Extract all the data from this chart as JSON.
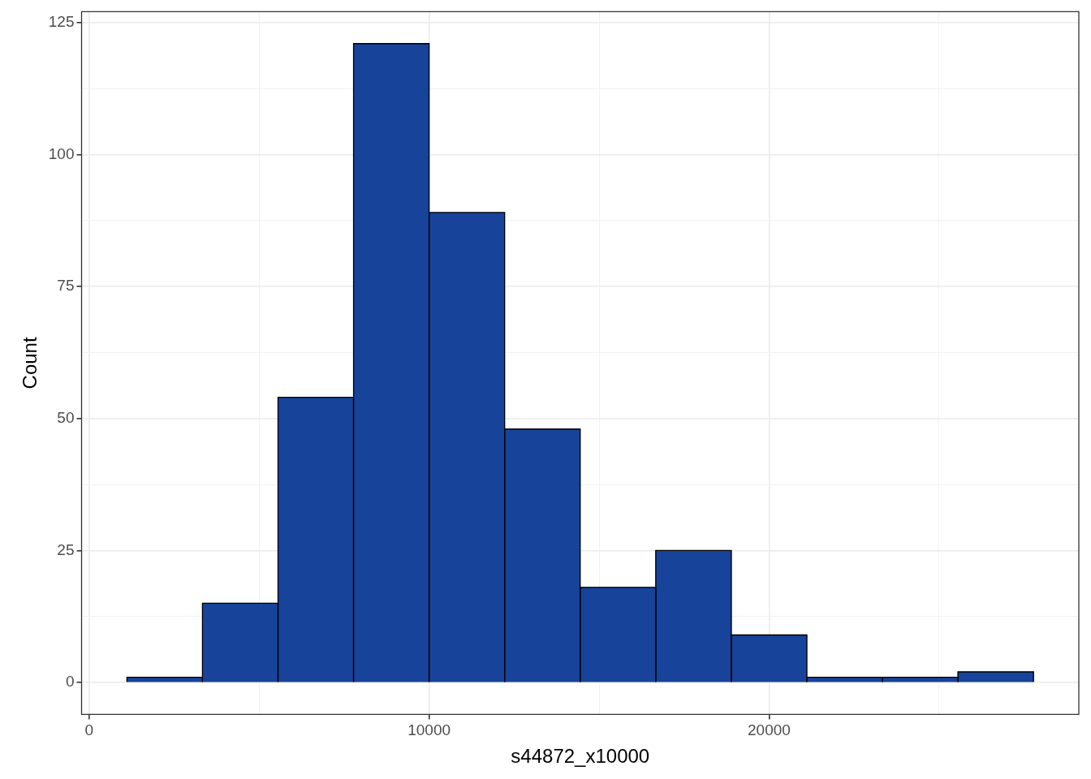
{
  "chart_data": {
    "type": "histogram",
    "xlabel": "s44872_x10000",
    "ylabel": "Count",
    "bins": [
      1111,
      3333,
      5556,
      7778,
      10000,
      12222,
      14444,
      16667,
      18889,
      21111,
      23333,
      25556,
      27778
    ],
    "values": [
      1,
      15,
      54,
      121,
      89,
      48,
      18,
      25,
      9,
      1,
      1,
      2
    ],
    "color": "#17439a",
    "xlim": [
      -222,
      29111
    ],
    "ylim": [
      -6.05,
      127.05
    ],
    "xticks": [
      0,
      {
        "value": 5000,
        "label": null
      },
      10000,
      {
        "value": 15000,
        "label": null
      },
      20000,
      {
        "value": 25000,
        "label": null
      }
    ],
    "yticks": [
      0,
      {
        "value": 12.5,
        "label": null
      },
      25,
      {
        "value": 37.5,
        "label": null
      },
      50,
      {
        "value": 62.5,
        "label": null
      },
      75,
      {
        "value": 87.5,
        "label": null
      },
      100,
      {
        "value": 112.5,
        "label": null
      },
      125
    ],
    "grid": true,
    "legend": false
  }
}
